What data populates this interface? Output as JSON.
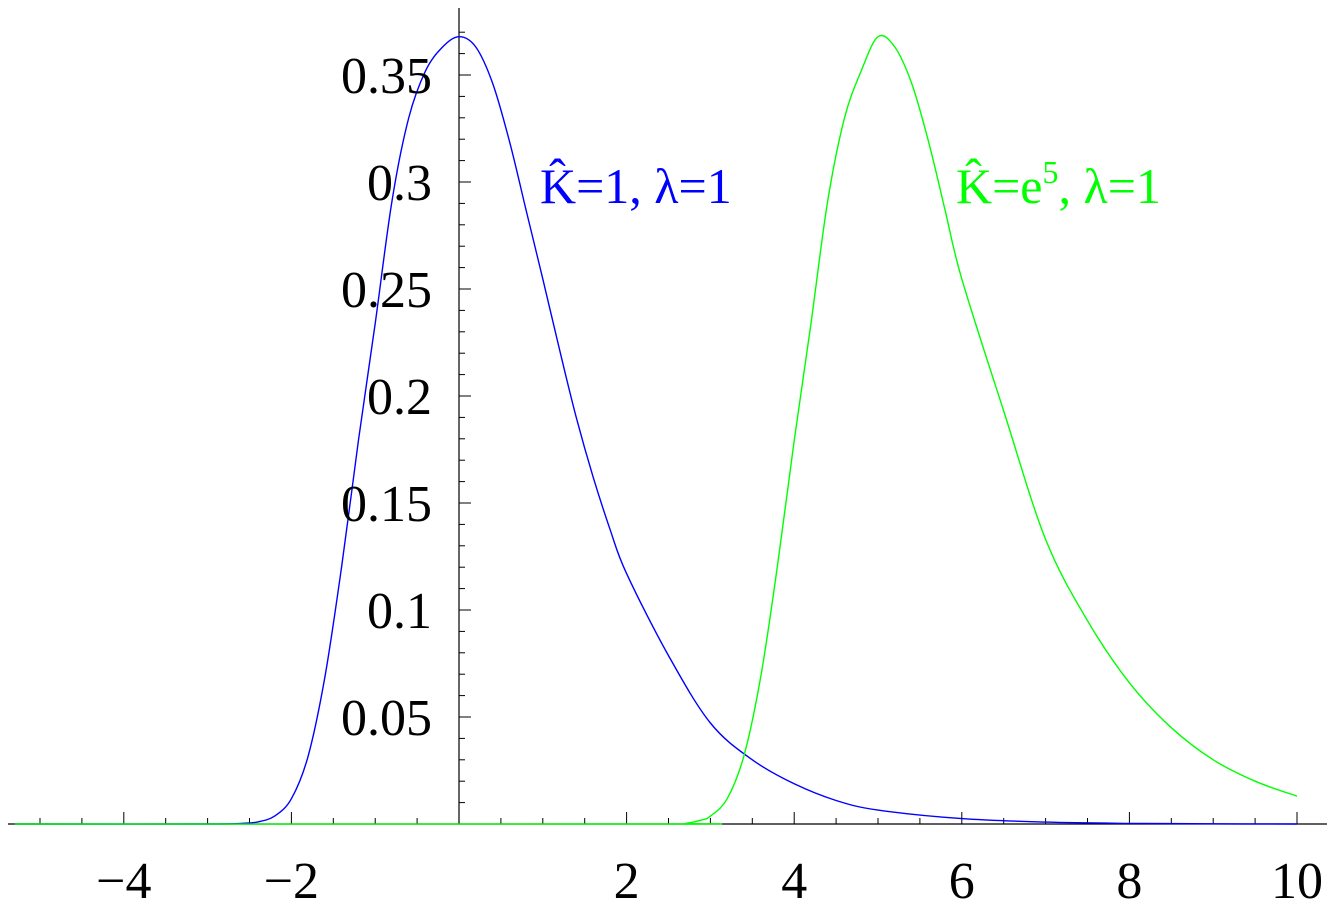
{
  "chart_data": {
    "type": "line",
    "title": "",
    "xlabel": "",
    "ylabel": "",
    "xlim": [
      -5.3,
      10.4
    ],
    "ylim": [
      0,
      0.38
    ],
    "grid": false,
    "x_ticks": [
      {
        "value": -4,
        "label": "−4"
      },
      {
        "value": -2,
        "label": "−2"
      },
      {
        "value": 2,
        "label": "2"
      },
      {
        "value": 4,
        "label": "4"
      },
      {
        "value": 6,
        "label": "6"
      },
      {
        "value": 8,
        "label": "8"
      },
      {
        "value": 10,
        "label": "10"
      }
    ],
    "y_ticks": [
      {
        "value": 0.05,
        "label": "0.05"
      },
      {
        "value": 0.1,
        "label": "0.1"
      },
      {
        "value": 0.15,
        "label": "0.15"
      },
      {
        "value": 0.2,
        "label": "0.2"
      },
      {
        "value": 0.25,
        "label": "0.25"
      },
      {
        "value": 0.3,
        "label": "0.3"
      },
      {
        "value": 0.35,
        "label": "0.35"
      }
    ],
    "series": [
      {
        "color": "#0000ff",
        "x": [
          -5.3,
          -3,
          -2.6,
          -2.4,
          -2.2,
          -2.0,
          -1.8,
          -1.6,
          -1.4,
          -1.2,
          -1.0,
          -0.8,
          -0.6,
          -0.4,
          -0.2,
          0,
          0.2,
          0.4,
          0.6,
          0.8,
          1.0,
          1.2,
          1.4,
          1.6,
          1.8,
          2.0,
          2.5,
          3.0,
          3.5,
          4.0,
          4.5,
          5.0,
          6.0,
          7.0,
          8.0,
          9.0,
          10.0
        ],
        "y": [
          0,
          0,
          0.0003,
          0.001,
          0.0037,
          0.0118,
          0.0318,
          0.0687,
          0.1205,
          0.1791,
          0.2339,
          0.2911,
          0.3299,
          0.3519,
          0.3629,
          0.3679,
          0.3631,
          0.3463,
          0.3193,
          0.287,
          0.2547,
          0.2216,
          0.1899,
          0.1622,
          0.138,
          0.117,
          0.0787,
          0.0472,
          0.03,
          0.0188,
          0.011,
          0.0065,
          0.0025,
          0.0009,
          0.0003,
          0.0001,
          0.0
        ]
      },
      {
        "color": "#00ff00",
        "x": [
          -5.3,
          2.5,
          2.7,
          2.9,
          3.0,
          3.2,
          3.4,
          3.6,
          3.8,
          4.0,
          4.2,
          4.4,
          4.6,
          4.8,
          5.0,
          5.2,
          5.4,
          5.6,
          5.8,
          6.0,
          6.5,
          7.0,
          7.5,
          8.0,
          8.5,
          9.0,
          9.5,
          10.0
        ],
        "y": [
          0,
          0,
          0.0003,
          0.0019,
          0.0037,
          0.0118,
          0.0318,
          0.0687,
          0.1205,
          0.1791,
          0.2339,
          0.2911,
          0.3299,
          0.3519,
          0.3679,
          0.3631,
          0.3463,
          0.3193,
          0.287,
          0.2547,
          0.193,
          0.133,
          0.095,
          0.066,
          0.045,
          0.03,
          0.02,
          0.013
        ]
      }
    ],
    "annotations": [
      {
        "parts": [
          "K̂=1, λ=1"
        ],
        "color": "#0000ff"
      },
      {
        "parts": [
          "K̂=e",
          "5",
          ", λ=1"
        ],
        "color": "#00ff00"
      }
    ]
  }
}
